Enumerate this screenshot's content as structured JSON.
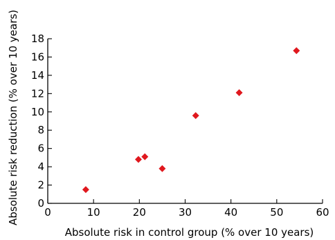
{
  "chart_data": {
    "type": "scatter",
    "xlabel": "Absolute risk in control group (% over 10 years)",
    "ylabel": "Absolute risk reduction (% over 10 years)",
    "xlim": [
      0,
      60
    ],
    "ylim": [
      0,
      18
    ],
    "x_ticks": [
      "0",
      "10",
      "20",
      "30",
      "40",
      "50",
      "60"
    ],
    "y_ticks": [
      "0",
      "2",
      "4",
      "6",
      "8",
      "10",
      "12",
      "14",
      "16",
      "18"
    ],
    "grid": false,
    "marker": "diamond",
    "marker_color": "#e0181e",
    "points": [
      {
        "x": 8.3,
        "y": 1.5
      },
      {
        "x": 19.8,
        "y": 4.8
      },
      {
        "x": 21.2,
        "y": 5.1
      },
      {
        "x": 25.0,
        "y": 3.8
      },
      {
        "x": 32.3,
        "y": 9.6
      },
      {
        "x": 41.8,
        "y": 12.1
      },
      {
        "x": 54.3,
        "y": 16.7
      }
    ]
  }
}
